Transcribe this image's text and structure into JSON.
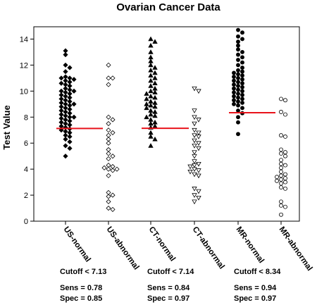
{
  "chart_data": {
    "type": "scatter",
    "title": "Ovarian Cancer Data",
    "xlabel": "",
    "ylabel": "Test Value",
    "ylim": [
      0,
      15
    ],
    "yticks": [
      0,
      2,
      4,
      6,
      8,
      10,
      12,
      14
    ],
    "grid": false,
    "legend": "none",
    "categories": [
      "US-normal",
      "US-abnormal",
      "CT-normal",
      "CT-abnormal",
      "MR-normal",
      "MR-abnormal"
    ],
    "series": [
      {
        "category": "US-normal",
        "marker": "diamond-filled",
        "values": [
          13.1,
          12.8,
          12.0,
          11.8,
          11.5,
          11.1,
          11.0,
          11.0,
          10.9,
          10.8,
          10.7,
          10.6,
          10.5,
          10.4,
          10.2,
          10.1,
          10.0,
          10.0,
          9.9,
          9.8,
          9.7,
          9.6,
          9.5,
          9.4,
          9.3,
          9.2,
          9.1,
          9.0,
          9.0,
          8.9,
          8.8,
          8.7,
          8.6,
          8.5,
          8.4,
          8.3,
          8.2,
          8.1,
          8.0,
          8.0,
          7.9,
          7.8,
          7.7,
          7.6,
          7.5,
          7.4,
          7.3,
          7.2,
          7.1,
          7.0,
          6.9,
          6.8,
          6.6,
          6.5,
          6.3,
          6.1,
          5.8,
          5.6,
          5.0
        ]
      },
      {
        "category": "US-abnormal",
        "marker": "diamond-open",
        "values": [
          12.0,
          11.0,
          11.0,
          10.5,
          8.0,
          7.8,
          7.5,
          7.0,
          6.8,
          6.6,
          6.3,
          6.0,
          5.5,
          5.2,
          5.0,
          4.8,
          4.3,
          4.2,
          4.1,
          4.0,
          4.0,
          3.9,
          3.5,
          2.2,
          2.0,
          1.9,
          1.5,
          1.0,
          0.9
        ]
      },
      {
        "category": "CT-normal",
        "marker": "triangle-up-filled",
        "values": [
          14.0,
          13.8,
          13.5,
          13.0,
          12.6,
          12.3,
          12.0,
          11.8,
          11.6,
          11.4,
          11.2,
          11.0,
          10.8,
          10.6,
          10.4,
          10.2,
          10.0,
          9.9,
          9.8,
          9.6,
          9.5,
          9.4,
          9.2,
          9.1,
          9.0,
          8.9,
          8.8,
          8.7,
          8.5,
          8.4,
          8.2,
          8.1,
          8.0,
          7.8,
          7.6,
          7.5,
          7.3,
          7.2,
          6.8,
          6.5,
          6.3,
          5.8
        ]
      },
      {
        "category": "CT-abnormal",
        "marker": "triangle-down-open",
        "values": [
          10.2,
          10.0,
          8.5,
          8.0,
          7.8,
          7.5,
          7.0,
          6.8,
          6.6,
          6.5,
          6.2,
          6.0,
          5.8,
          5.6,
          5.3,
          5.0,
          4.6,
          4.4,
          4.3,
          4.2,
          4.0,
          3.9,
          3.8,
          3.6,
          3.5,
          2.5,
          2.3,
          2.0,
          1.8,
          1.5
        ]
      },
      {
        "category": "MR-normal",
        "marker": "circle-filled",
        "values": [
          14.7,
          14.5,
          14.2,
          14.0,
          13.8,
          13.5,
          13.2,
          13.0,
          12.8,
          12.6,
          12.4,
          12.2,
          12.0,
          11.8,
          11.6,
          11.5,
          11.4,
          11.3,
          11.2,
          11.1,
          11.0,
          10.9,
          10.8,
          10.7,
          10.6,
          10.5,
          10.4,
          10.3,
          10.2,
          10.1,
          10.0,
          9.9,
          9.8,
          9.7,
          9.6,
          9.5,
          9.4,
          9.3,
          9.2,
          9.1,
          9.0,
          8.9,
          8.7,
          8.5,
          8.3,
          8.0,
          7.6,
          6.7
        ]
      },
      {
        "category": "MR-abnormal",
        "marker": "circle-open",
        "values": [
          9.4,
          9.3,
          8.4,
          8.2,
          6.6,
          6.5,
          5.5,
          5.3,
          5.2,
          5.0,
          4.7,
          4.4,
          4.3,
          4.1,
          3.8,
          3.6,
          3.5,
          3.4,
          3.3,
          3.2,
          3.1,
          3.0,
          2.9,
          2.6,
          2.5,
          1.5,
          1.2,
          1.1,
          0.5
        ]
      }
    ],
    "cutoffs": [
      {
        "groups": [
          "US-normal",
          "US-abnormal"
        ],
        "value": 7.13,
        "color": "#e8131b"
      },
      {
        "groups": [
          "CT-normal",
          "CT-abnormal"
        ],
        "value": 7.14,
        "color": "#e8131b"
      },
      {
        "groups": [
          "MR-normal",
          "MR-abnormal"
        ],
        "value": 8.34,
        "color": "#e8131b"
      }
    ],
    "stats": [
      {
        "cutoff": "Cutoff < 7.13",
        "sens": "Sens = 0.78",
        "spec": "Spec = 0.85"
      },
      {
        "cutoff": "Cutoff < 7.14",
        "sens": "Sens = 0.84",
        "spec": "Spec = 0.97"
      },
      {
        "cutoff": "Cutoff < 8.34",
        "sens": "Sens = 0.94",
        "spec": "Spec = 0.97"
      }
    ]
  }
}
